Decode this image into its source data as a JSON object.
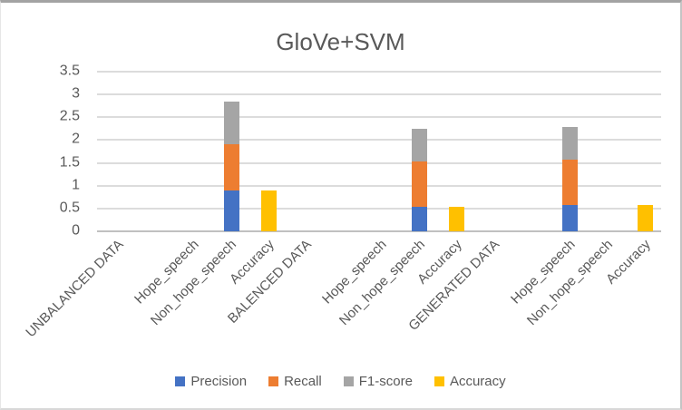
{
  "chart_data": {
    "type": "bar",
    "stacked": true,
    "title": "GloVe+SVM",
    "categories": [
      "UNBALANCED DATA",
      "",
      "Hope_speech",
      "Non_hope_speech",
      "Accuracy",
      "BALENCED DATA",
      "",
      "Hope_speech",
      "Non_hope_speech",
      "Accuracy",
      "GENERATED DATA",
      "",
      "Hope_speech",
      "Non_hope_speech",
      "Accuracy"
    ],
    "series": [
      {
        "name": "Precision",
        "color": "#4472C4",
        "values": [
          0,
          0,
          0,
          0.9,
          0,
          0,
          0,
          0,
          0.53,
          0,
          0,
          0,
          0.58,
          0,
          0
        ]
      },
      {
        "name": "Recall",
        "color": "#ED7D31",
        "values": [
          0,
          0,
          0,
          1.0,
          0,
          0,
          0,
          0,
          1.0,
          0,
          0,
          0,
          1.0,
          0,
          0
        ]
      },
      {
        "name": "F1-score",
        "color": "#A5A5A5",
        "values": [
          0,
          0,
          0,
          0.95,
          0,
          0,
          0,
          0,
          0.71,
          0,
          0,
          0,
          0.71,
          0,
          0
        ]
      },
      {
        "name": "Accuracy",
        "color": "#FFC000",
        "values": [
          0,
          0,
          0,
          0,
          0.9,
          0,
          0,
          0,
          0,
          0.53,
          0,
          0,
          0,
          0,
          0.58
        ]
      }
    ],
    "ylim": [
      0,
      3.5
    ],
    "yticks": [
      0,
      0.5,
      1,
      1.5,
      2,
      2.5,
      3,
      3.5
    ],
    "ytick_labels": [
      "0",
      "0.5",
      "1",
      "1.5",
      "2",
      "2.5",
      "3",
      "3.5"
    ],
    "xlabel": "",
    "ylabel": "",
    "grid": true,
    "legend_position": "bottom"
  }
}
